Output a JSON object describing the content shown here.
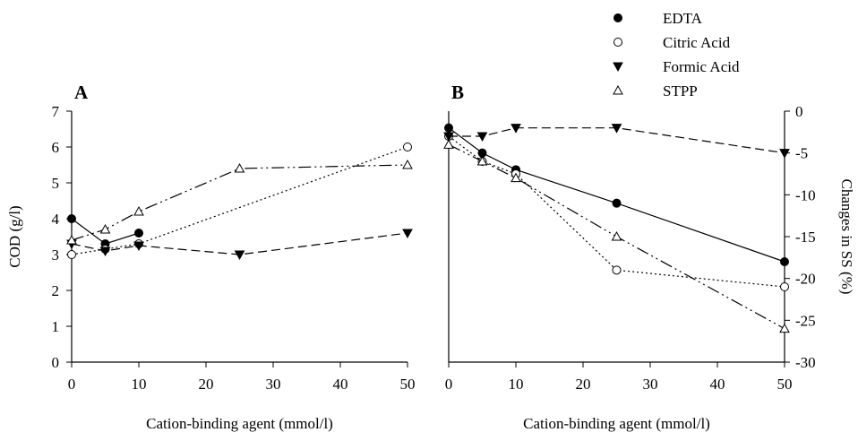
{
  "legend": [
    {
      "label": "EDTA",
      "marker": "circle-filled"
    },
    {
      "label": "Citric Acid",
      "marker": "circle-open"
    },
    {
      "label": "Formic Acid",
      "marker": "triangle-down-filled"
    },
    {
      "label": "STPP",
      "marker": "triangle-up-open"
    }
  ],
  "line_styles": {
    "EDTA": "solid",
    "Citric Acid": "dotted",
    "Formic Acid": "dashed",
    "STPP": "dash-dot-dot"
  },
  "chart_data": [
    {
      "type": "line",
      "panel_label": "A",
      "xlabel": "Cation-binding agent (mmol/l)",
      "ylabel": "COD (g/l)",
      "xlim": [
        0,
        50
      ],
      "ylim": [
        0,
        7
      ],
      "xticks": [
        0,
        10,
        20,
        30,
        40,
        50
      ],
      "yticks": [
        0,
        1,
        2,
        3,
        4,
        5,
        6,
        7
      ],
      "y_axis_side": "left",
      "grid": false,
      "series": [
        {
          "name": "EDTA",
          "x": [
            0,
            5,
            10
          ],
          "y": [
            4.0,
            3.3,
            3.6
          ]
        },
        {
          "name": "Citric Acid",
          "x": [
            0,
            5,
            10,
            50
          ],
          "y": [
            3.0,
            3.15,
            3.3,
            6.0
          ]
        },
        {
          "name": "Formic Acid",
          "x": [
            0,
            5,
            10,
            25,
            50
          ],
          "y": [
            3.3,
            3.1,
            3.25,
            3.0,
            3.6
          ]
        },
        {
          "name": "STPP",
          "x": [
            0,
            5,
            10,
            25,
            50
          ],
          "y": [
            3.4,
            3.7,
            4.2,
            5.4,
            5.5
          ]
        }
      ]
    },
    {
      "type": "line",
      "panel_label": "B",
      "xlabel": "Cation-binding agent (mmol/l)",
      "ylabel": "Changes in SS (%)",
      "xlim": [
        0,
        50
      ],
      "ylim": [
        -30,
        0
      ],
      "xticks": [
        0,
        10,
        20,
        30,
        40,
        50
      ],
      "yticks": [
        0,
        -5,
        -10,
        -15,
        -20,
        -25,
        -30
      ],
      "y_axis_side": "right",
      "grid": false,
      "series": [
        {
          "name": "EDTA",
          "x": [
            0,
            5,
            10,
            25,
            50
          ],
          "y": [
            -2,
            -5,
            -7,
            -11,
            -18
          ]
        },
        {
          "name": "Citric Acid",
          "x": [
            0,
            5,
            10,
            25,
            50
          ],
          "y": [
            -3,
            -6,
            -7.5,
            -19,
            -21
          ]
        },
        {
          "name": "Formic Acid",
          "x": [
            0,
            5,
            10,
            25,
            50
          ],
          "y": [
            -3,
            -3,
            -2,
            -2,
            -5
          ]
        },
        {
          "name": "STPP",
          "x": [
            0,
            5,
            10,
            25,
            50
          ],
          "y": [
            -4,
            -6,
            -8,
            -15,
            -26
          ]
        }
      ]
    }
  ]
}
